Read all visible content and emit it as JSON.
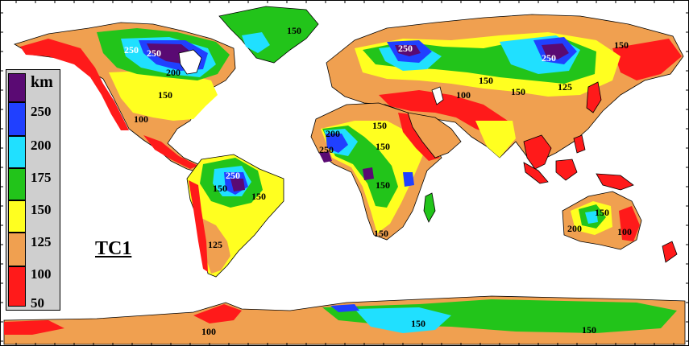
{
  "map": {
    "model_label": "TC1",
    "legend": {
      "unit": "km",
      "ticks": [
        "250",
        "200",
        "175",
        "150",
        "125",
        "100",
        "50"
      ],
      "colors": [
        "#5a0a73",
        "#2040ff",
        "#20e0ff",
        "#22c41a",
        "#ffff20",
        "#f0a050",
        "#ff1a1a"
      ]
    },
    "palette": {
      "ocean": "#ffffff",
      "c50_100": "#ff1a1a",
      "c100_125": "#f0a050",
      "c125_150": "#ffff20",
      "c150_175": "#22c41a",
      "c175_200": "#20e0ff",
      "c200_250": "#2040ff",
      "c250": "#5a0a73"
    },
    "contour_labels": [
      {
        "text": "250",
        "color": "white"
      },
      {
        "text": "250",
        "color": "white"
      },
      {
        "text": "200",
        "color": "black"
      },
      {
        "text": "150",
        "color": "black"
      },
      {
        "text": "100",
        "color": "black"
      },
      {
        "text": "150",
        "color": "black"
      },
      {
        "text": "250",
        "color": "white"
      },
      {
        "text": "250",
        "color": "white"
      },
      {
        "text": "150",
        "color": "black"
      },
      {
        "text": "150",
        "color": "black"
      },
      {
        "text": "125",
        "color": "black"
      },
      {
        "text": "100",
        "color": "black"
      },
      {
        "text": "150",
        "color": "black"
      },
      {
        "text": "150",
        "color": "black"
      },
      {
        "text": "150",
        "color": "black"
      },
      {
        "text": "200",
        "color": "black"
      },
      {
        "text": "250",
        "color": "black"
      },
      {
        "text": "150",
        "color": "black"
      },
      {
        "text": "150",
        "color": "black"
      },
      {
        "text": "250",
        "color": "white"
      },
      {
        "text": "150",
        "color": "black"
      },
      {
        "text": "150",
        "color": "black"
      },
      {
        "text": "125",
        "color": "black"
      },
      {
        "text": "200",
        "color": "black"
      },
      {
        "text": "150",
        "color": "black"
      },
      {
        "text": "100",
        "color": "black"
      },
      {
        "text": "100",
        "color": "black"
      },
      {
        "text": "150",
        "color": "black"
      },
      {
        "text": "150",
        "color": "black"
      }
    ]
  }
}
